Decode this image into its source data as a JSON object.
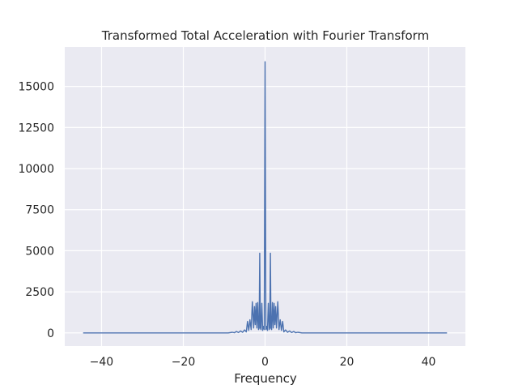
{
  "chart_data": {
    "type": "line",
    "title": "Transformed Total Acceleration with Fourier Transform",
    "xlabel": "Frequency",
    "ylabel": "",
    "xlim": [
      -49,
      49
    ],
    "ylim": [
      -800,
      17400
    ],
    "xticks": [
      -40,
      -20,
      0,
      20,
      40
    ],
    "xtick_labels": [
      "−40",
      "−20",
      "0",
      "20",
      "40"
    ],
    "yticks": [
      0,
      2500,
      5000,
      7500,
      10000,
      12500,
      15000
    ],
    "ytick_labels": [
      "0",
      "2500",
      "5000",
      "7500",
      "10000",
      "12500",
      "15000"
    ],
    "grid": true,
    "legend": "none",
    "background": "#eaeaf2",
    "grid_color": "#ffffff",
    "series": [
      {
        "color": "#4c72b0",
        "x": [
          -44.5,
          -9,
          -8,
          -7.5,
          -7,
          -6.5,
          -6,
          -5.5,
          -5,
          -4.6,
          -4.3,
          -4,
          -3.7,
          -3.4,
          -3.1,
          -2.8,
          -2.6,
          -2.4,
          -2.2,
          -2.0,
          -1.8,
          -1.6,
          -1.45,
          -1.3,
          -1.15,
          -1.0,
          -0.8,
          -0.6,
          -0.4,
          -0.2,
          0,
          0.2,
          0.4,
          0.6,
          0.8,
          1.0,
          1.15,
          1.3,
          1.45,
          1.6,
          1.8,
          2.0,
          2.2,
          2.4,
          2.6,
          2.8,
          3.1,
          3.4,
          3.7,
          4.0,
          4.3,
          4.6,
          5.0,
          5.5,
          6.0,
          6.5,
          7.0,
          7.5,
          8.0,
          9.0,
          44.5
        ],
        "y": [
          0,
          0,
          40,
          10,
          90,
          20,
          120,
          40,
          180,
          60,
          700,
          150,
          800,
          200,
          1900,
          300,
          1600,
          500,
          1800,
          300,
          1850,
          200,
          300,
          4850,
          300,
          200,
          1800,
          150,
          400,
          200,
          16500,
          200,
          400,
          150,
          1800,
          200,
          300,
          4850,
          300,
          200,
          1850,
          300,
          1800,
          500,
          1600,
          300,
          1900,
          200,
          800,
          150,
          700,
          60,
          180,
          40,
          120,
          20,
          90,
          10,
          40,
          0,
          0
        ]
      }
    ]
  }
}
